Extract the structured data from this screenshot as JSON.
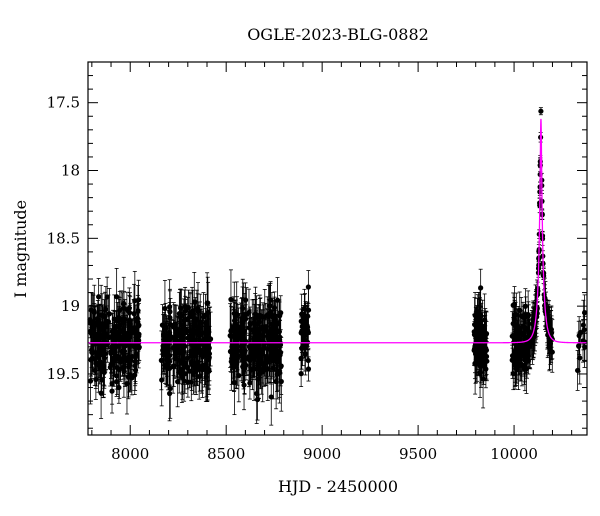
{
  "chart_data": {
    "type": "scatter",
    "title": "OGLE-2023-BLG-0882",
    "xlabel": "HJD - 2450000",
    "ylabel": "I magnitude",
    "xlim": [
      7780,
      10380
    ],
    "ylim": [
      19.95,
      17.2
    ],
    "y_inverted": true,
    "x_ticks": [
      8000,
      8500,
      9000,
      9500,
      10000
    ],
    "x_tick_labels": [
      "8000",
      "8500",
      "9000",
      "9500",
      "10000"
    ],
    "y_ticks": [
      17.5,
      18,
      18.5,
      19,
      19.5
    ],
    "y_tick_labels": [
      "17.5",
      "18",
      "18.5",
      "19",
      "19.5"
    ],
    "grid": false,
    "legend": "none",
    "colors": {
      "data": "#000000",
      "model": "#ff00ff"
    },
    "observing_seasons": [
      {
        "x_start": 7790,
        "x_end": 8050,
        "mag_mean": 19.27,
        "mag_scatter": 0.14,
        "err": 0.16,
        "n": 220
      },
      {
        "x_start": 8160,
        "x_end": 8420,
        "mag_mean": 19.27,
        "mag_scatter": 0.14,
        "err": 0.17,
        "n": 220
      },
      {
        "x_start": 8520,
        "x_end": 8790,
        "mag_mean": 19.27,
        "mag_scatter": 0.15,
        "err": 0.17,
        "n": 240
      },
      {
        "x_start": 8890,
        "x_end": 8930,
        "mag_mean": 19.22,
        "mag_scatter": 0.13,
        "err": 0.13,
        "n": 40
      },
      {
        "x_start": 9790,
        "x_end": 9860,
        "mag_mean": 19.25,
        "mag_scatter": 0.14,
        "err": 0.16,
        "n": 90
      },
      {
        "x_start": 9990,
        "x_end": 10200,
        "mag_mean": 19.27,
        "mag_scatter": 0.12,
        "err": 0.14,
        "n": 200
      },
      {
        "x_start": 10330,
        "x_end": 10375,
        "mag_mean": 19.25,
        "mag_scatter": 0.12,
        "err": 0.14,
        "n": 12
      }
    ],
    "model": {
      "baseline_mag": 19.27,
      "t0": 10140,
      "peak_mag": 17.62,
      "tE": 28,
      "u0": 0.12
    }
  }
}
